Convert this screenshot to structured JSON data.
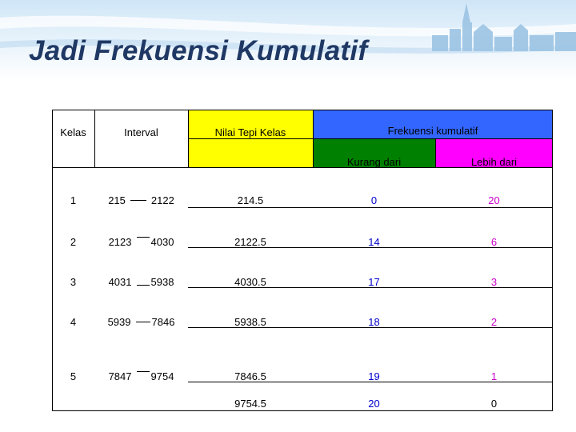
{
  "slide": {
    "title": "Jadi Frekuensi Kumulatif"
  },
  "colors": {
    "title": "#1f3864",
    "header_yellow": "#ffff00",
    "header_blue": "#3366ff",
    "kurang_green": "#008000",
    "lebih_magenta": "#ff00ff",
    "lebih_values": "#cc00cc",
    "kurang_values": "#0000cc"
  },
  "table": {
    "headers": {
      "kelas": "Kelas",
      "interval": "Interval",
      "nilai_tepi": "Nilai Tepi Kelas",
      "frekuensi": "Frekuensi kumulatif",
      "kurang": "Kurang dari",
      "lebih": "Lebih dari"
    },
    "rows": [
      {
        "kelas": "1",
        "lower": "215",
        "upper": "2122",
        "tepi": "214.5",
        "kurang": "0",
        "lebih": "20"
      },
      {
        "kelas": "2",
        "lower": "2123",
        "upper": "4030",
        "tepi": "2122.5",
        "kurang": "14",
        "lebih": "6"
      },
      {
        "kelas": "3",
        "lower": "4031",
        "upper": "5938",
        "tepi": "4030.5",
        "kurang": "17",
        "lebih": "3"
      },
      {
        "kelas": "4",
        "lower": "5939",
        "upper": "7846",
        "tepi": "5938.5",
        "kurang": "18",
        "lebih": "2"
      },
      {
        "kelas": "5",
        "lower": "7847",
        "upper": "9754",
        "tepi": "7846.5",
        "kurang": "19",
        "lebih": "1"
      }
    ],
    "final_row": {
      "tepi": "9754.5",
      "kurang": "20",
      "lebih": "0"
    }
  }
}
